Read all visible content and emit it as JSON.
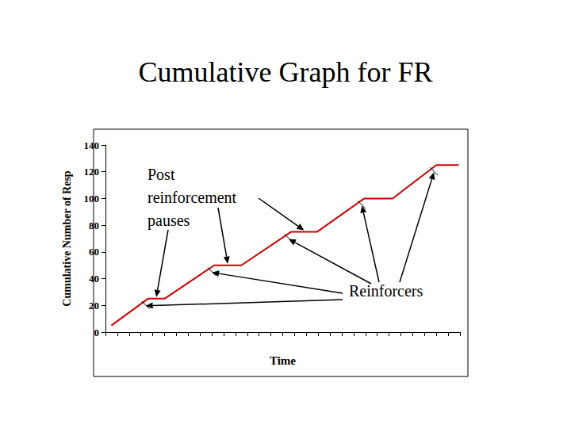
{
  "chart_data": {
    "type": "line",
    "title": "Cumulative Graph for FR",
    "x_label": "Time",
    "y_label": "Cumulative Number of Resp",
    "x": [
      0.5,
      3.6,
      5.0,
      9.2,
      11.5,
      15.7,
      17.9,
      21.9,
      24.3,
      28.0,
      29.9
    ],
    "values": [
      5,
      25,
      25,
      50,
      50,
      75,
      75,
      100,
      100,
      125,
      125
    ],
    "color": "#cc0000",
    "xlim": [
      0,
      30
    ],
    "xticks": [
      0,
      1,
      2,
      3,
      4,
      5,
      6,
      7,
      8,
      9,
      10,
      11,
      12,
      13,
      14,
      15,
      16,
      17,
      18,
      19,
      20,
      21,
      22,
      23,
      24,
      25,
      26,
      27,
      28,
      29,
      30
    ],
    "ylim": [
      0,
      140
    ],
    "yticks": [
      0,
      20,
      40,
      60,
      80,
      100,
      120,
      140
    ],
    "grid": false,
    "tick_labels": "y",
    "annotations": [
      {
        "text": "Post\nreinforcement\npauses"
      },
      {
        "text": "Reinforcers"
      }
    ]
  }
}
